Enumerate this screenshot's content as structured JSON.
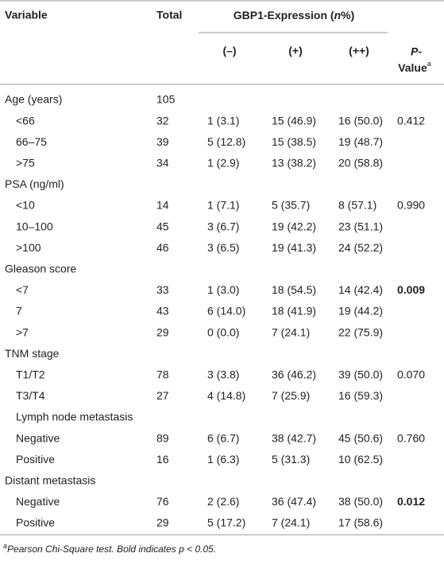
{
  "header": {
    "variable": "Variable",
    "total": "Total",
    "group": [
      "GBP1-Expression (",
      "n",
      "%)"
    ],
    "columns": [
      "(–)",
      "(+)",
      "(++)"
    ],
    "p_value": [
      "P-",
      "Value",
      "a"
    ]
  },
  "table": {
    "rows": [
      {
        "label": "Age (years)",
        "total": "105"
      },
      {
        "label": "<66",
        "sub": true,
        "total": "32",
        "neg": "1 (3.1)",
        "pos": "15 (46.9)",
        "pospos": "16 (50.0)",
        "p": "0.412"
      },
      {
        "label": "66–75",
        "sub": true,
        "total": "39",
        "neg": "5 (12.8)",
        "pos": "15 (38.5)",
        "pospos": "19 (48.7)"
      },
      {
        "label": ">75",
        "sub": true,
        "total": "34",
        "neg": "1 (2.9)",
        "pos": "13 (38.2)",
        "pospos": "20 (58.8)"
      },
      {
        "label": "PSA (ng/ml)"
      },
      {
        "label": "<10",
        "sub": true,
        "total": "14",
        "neg": "1 (7.1)",
        "pos": "5 (35.7)",
        "pospos": "8 (57.1)",
        "p": "0.990"
      },
      {
        "label": "10–100",
        "sub": true,
        "total": "45",
        "neg": "3 (6.7)",
        "pos": "19 (42.2)",
        "pospos": "23 (51.1)"
      },
      {
        "label": ">100",
        "sub": true,
        "total": "46",
        "neg": "3 (6.5)",
        "pos": "19 (41.3)",
        "pospos": "24 (52.2)"
      },
      {
        "label": "Gleason score"
      },
      {
        "label": "<7",
        "sub": true,
        "total": "33",
        "neg": "1 (3.0)",
        "pos": "18 (54.5)",
        "pospos": "14 (42.4)",
        "p": "0.009",
        "bold": true
      },
      {
        "label": "7",
        "sub": true,
        "total": "43",
        "neg": "6 (14.0)",
        "pos": "18 (41.9)",
        "pospos": "19 (44.2)"
      },
      {
        "label": ">7",
        "sub": true,
        "total": "29",
        "neg": "0 (0.0)",
        "pos": "7 (24.1)",
        "pospos": "22 (75.9)"
      },
      {
        "label": "TNM stage"
      },
      {
        "label": "T1/T2",
        "sub": true,
        "total": "78",
        "neg": "3 (3.8)",
        "pos": "36 (46.2)",
        "pospos": "39 (50.0)",
        "p": "0.070"
      },
      {
        "label": "T3/T4",
        "sub": true,
        "total": "27",
        "neg": "4 (14.8)",
        "pos": "7 (25.9)",
        "pospos": "16 (59.3)"
      },
      {
        "label": "Lymph node metastasis",
        "sub": true
      },
      {
        "label": "Negative",
        "sub": true,
        "total": "89",
        "neg": "6 (6.7)",
        "pos": "38 (42.7)",
        "pospos": "45 (50.6)",
        "p": "0.760"
      },
      {
        "label": "Positive",
        "sub": true,
        "total": "16",
        "neg": "1 (6.3)",
        "pos": "5 (31.3)",
        "pospos": "10 (62.5)"
      },
      {
        "label": "Distant metastasis"
      },
      {
        "label": "Negative",
        "sub": true,
        "total": "76",
        "neg": "2 (2.6)",
        "pos": "36 (47.4)",
        "pospos": "38 (50.0)",
        "p": "0.012",
        "bold": true
      },
      {
        "label": "Positive",
        "sub": true,
        "total": "29",
        "neg": "5 (17.2)",
        "pos": "7 (24.1)",
        "pospos": "17 (58.6)"
      }
    ]
  },
  "footnote": [
    "a",
    "Pearson Chi-Square test. Bold indicates ",
    "p",
    " < 0.05."
  ]
}
